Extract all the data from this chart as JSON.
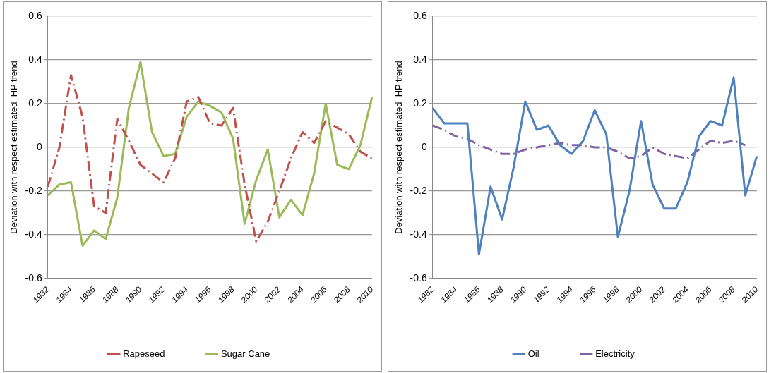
{
  "chart_data": [
    {
      "type": "line",
      "ylabel": "Deviation with respect estimated  HP trend",
      "categories": [
        "1982",
        null,
        "1984",
        null,
        "1986",
        null,
        "1988",
        null,
        "1990",
        null,
        "1992",
        null,
        "1994",
        null,
        "1996",
        null,
        "1998",
        null,
        "2000",
        null,
        "2002",
        null,
        "2004",
        null,
        "2006",
        null,
        "2008",
        null,
        "2010"
      ],
      "series": [
        {
          "name": "Rapeseed",
          "color": "#c0504d",
          "line_style": "dashed",
          "values": [
            -0.18,
            0.0,
            0.33,
            0.14,
            -0.27,
            -0.3,
            0.13,
            0.03,
            -0.08,
            -0.12,
            -0.16,
            -0.05,
            0.21,
            0.23,
            0.11,
            0.1,
            0.18,
            -0.17,
            -0.43,
            -0.34,
            -0.2,
            -0.05,
            0.07,
            0.02,
            0.12,
            0.09,
            0.06,
            -0.02,
            -0.05
          ]
        },
        {
          "name": "Sugar Cane",
          "color": "#9bbb59",
          "line_style": "solid",
          "values": [
            -0.22,
            -0.17,
            -0.16,
            -0.45,
            -0.38,
            -0.42,
            -0.23,
            0.18,
            0.39,
            0.07,
            -0.04,
            -0.03,
            0.14,
            0.21,
            0.19,
            0.16,
            0.04,
            -0.35,
            -0.15,
            -0.01,
            -0.32,
            -0.24,
            -0.31,
            -0.12,
            0.2,
            -0.08,
            -0.1,
            0.01,
            0.23
          ]
        }
      ],
      "ylim": [
        -0.6,
        0.6
      ],
      "yticks": [
        -0.6,
        -0.4,
        -0.2,
        0,
        0.2,
        0.4,
        0.6
      ],
      "grid": "y",
      "legend": "bottom",
      "marker": "none"
    },
    {
      "type": "line",
      "ylabel": "Deviation with respect estimated  HP trend",
      "categories": [
        "1982",
        null,
        "1984",
        null,
        "1986",
        null,
        "1988",
        null,
        "1990",
        null,
        "1992",
        null,
        "1994",
        null,
        "1996",
        null,
        "1998",
        null,
        "2000",
        null,
        "2002",
        null,
        "2004",
        null,
        "2006",
        null,
        "2008",
        null,
        "2010"
      ],
      "series": [
        {
          "name": "Oil",
          "color": "#4f81bd",
          "line_style": "solid",
          "values": [
            0.18,
            0.11,
            0.11,
            0.11,
            -0.49,
            -0.18,
            -0.33,
            -0.09,
            0.21,
            0.08,
            0.1,
            0.01,
            -0.03,
            0.03,
            0.17,
            0.06,
            -0.41,
            -0.2,
            0.12,
            -0.17,
            -0.28,
            -0.28,
            -0.16,
            0.05,
            0.12,
            0.1,
            0.32,
            -0.22,
            -0.04
          ]
        },
        {
          "name": "Electricity",
          "color": "#8064a2",
          "line_style": "dashed",
          "values": [
            0.1,
            0.08,
            0.05,
            0.04,
            0.01,
            -0.01,
            -0.03,
            -0.03,
            -0.01,
            0.0,
            0.01,
            0.02,
            0.01,
            0.01,
            0.0,
            0.0,
            -0.02,
            -0.05,
            -0.04,
            0.0,
            -0.03,
            -0.04,
            -0.05,
            -0.01,
            0.03,
            0.02,
            0.03,
            0.01,
            null
          ]
        }
      ],
      "ylim": [
        -0.6,
        0.6
      ],
      "yticks": [
        -0.6,
        -0.4,
        -0.2,
        0,
        0.2,
        0.4,
        0.6
      ],
      "grid": "y",
      "legend": "bottom",
      "marker": "none"
    }
  ]
}
